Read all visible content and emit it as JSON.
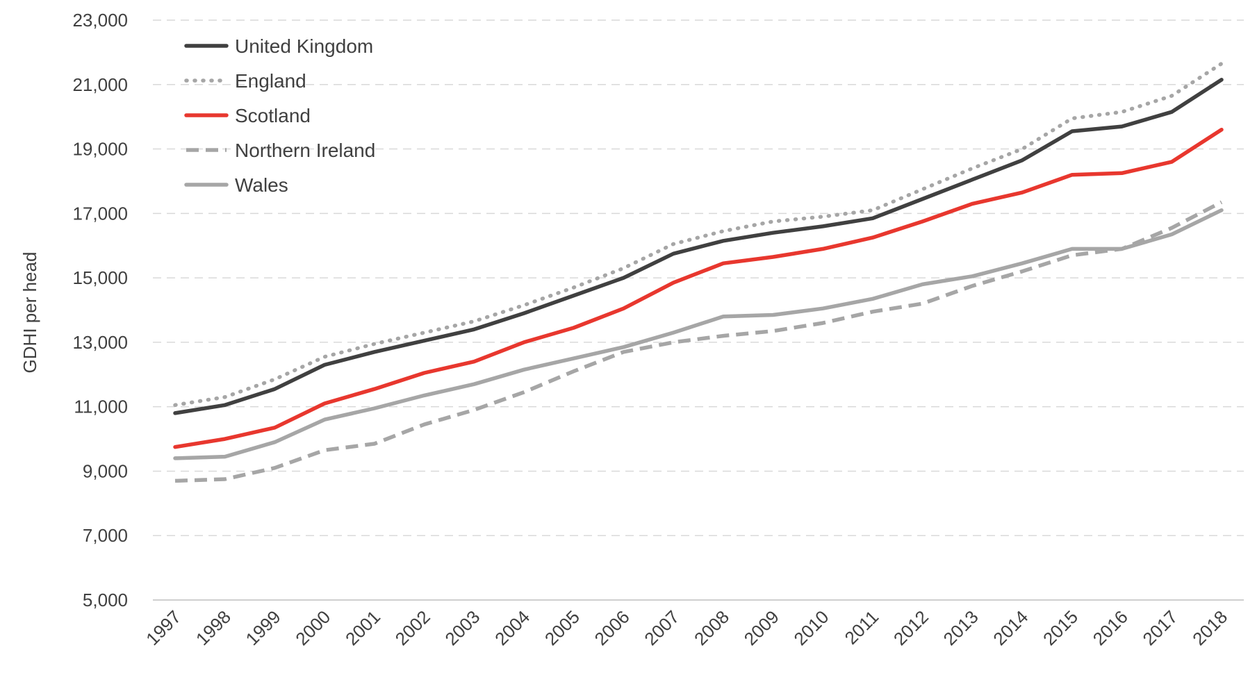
{
  "chart_data": {
    "type": "line",
    "title": "",
    "xlabel": "",
    "ylabel": "GDHI per head",
    "ylim": [
      5000,
      23000
    ],
    "yticks": [
      5000,
      7000,
      9000,
      11000,
      13000,
      15000,
      17000,
      19000,
      21000,
      23000
    ],
    "ytick_labels": [
      "5,000",
      "7,000",
      "9,000",
      "11,000",
      "13,000",
      "15,000",
      "17,000",
      "19,000",
      "21,000",
      "23,000"
    ],
    "x": [
      "1997",
      "1998",
      "1999",
      "2000",
      "2001",
      "2002",
      "2003",
      "2004",
      "2005",
      "2006",
      "2007",
      "2008",
      "2009",
      "2010",
      "2011",
      "2012",
      "2013",
      "2014",
      "2015",
      "2016",
      "2017",
      "2018"
    ],
    "grid": true,
    "legend_position": "top-left",
    "series": [
      {
        "name": "United Kingdom",
        "color": "#404040",
        "style": "solid",
        "values": [
          10800,
          11050,
          11550,
          12300,
          12700,
          13050,
          13400,
          13900,
          14450,
          15000,
          15750,
          16150,
          16400,
          16600,
          16850,
          17450,
          18050,
          18650,
          19550,
          19700,
          20150,
          21150
        ]
      },
      {
        "name": "England",
        "color": "#a6a6a6",
        "style": "dotted",
        "values": [
          11050,
          11300,
          11850,
          12550,
          12950,
          13300,
          13650,
          14150,
          14700,
          15300,
          16050,
          16450,
          16750,
          16900,
          17100,
          17750,
          18400,
          19000,
          19950,
          20150,
          20650,
          21650
        ]
      },
      {
        "name": "Scotland",
        "color": "#e8372e",
        "style": "solid",
        "values": [
          9750,
          10000,
          10350,
          11100,
          11550,
          12050,
          12400,
          13000,
          13450,
          14050,
          14850,
          15450,
          15650,
          15900,
          16250,
          16750,
          17300,
          17650,
          18200,
          18250,
          18600,
          19600
        ]
      },
      {
        "name": "Northern Ireland",
        "color": "#a6a6a6",
        "style": "dashed",
        "values": [
          8700,
          8750,
          9100,
          9650,
          9850,
          10450,
          10900,
          11450,
          12100,
          12700,
          13000,
          13200,
          13350,
          13600,
          13950,
          14200,
          14750,
          15200,
          15700,
          15900,
          16550,
          17350
        ]
      },
      {
        "name": "Wales",
        "color": "#a6a6a6",
        "style": "solid",
        "values": [
          9400,
          9450,
          9900,
          10600,
          10950,
          11350,
          11700,
          12150,
          12500,
          12850,
          13300,
          13800,
          13850,
          14050,
          14350,
          14800,
          15050,
          15450,
          15900,
          15900,
          16350,
          17100
        ]
      }
    ]
  }
}
